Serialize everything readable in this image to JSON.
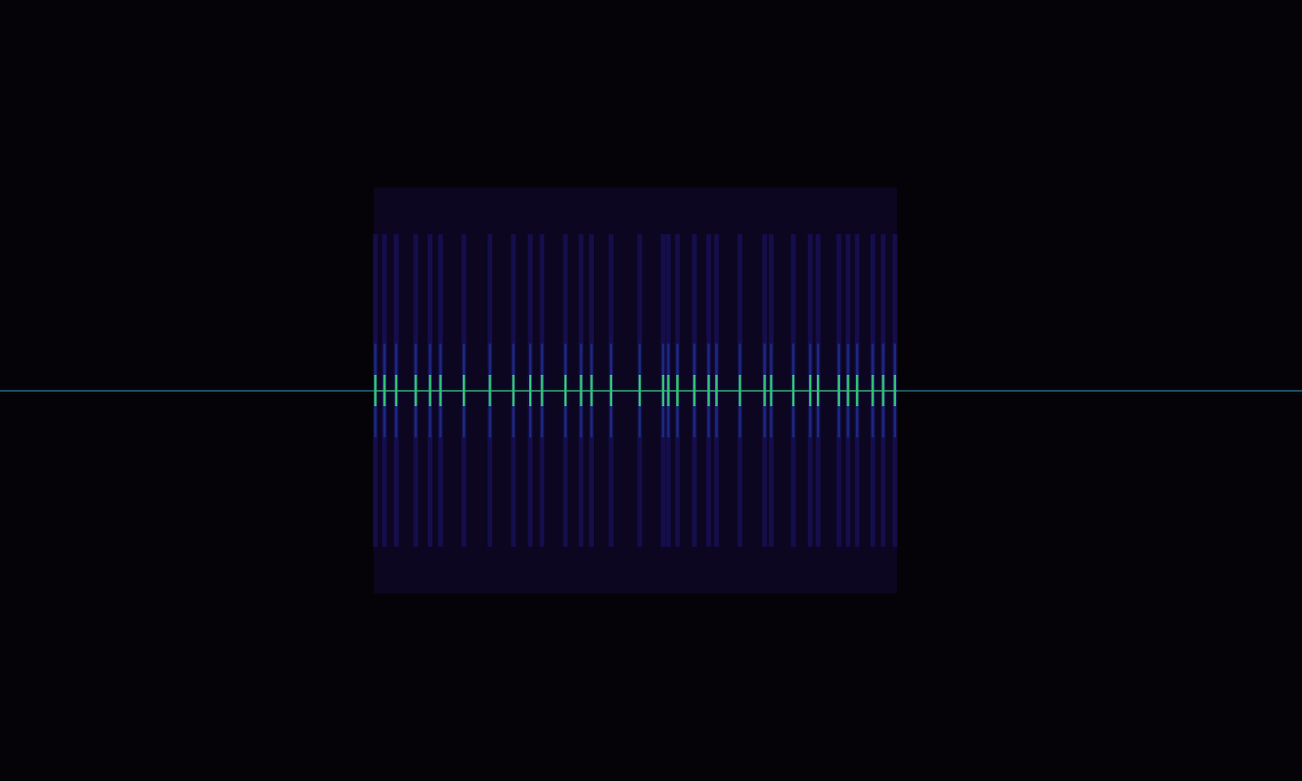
{
  "chart_data": {
    "type": "spectrogram",
    "xlim": [
      0,
      100
    ],
    "ylim": [
      -50,
      50
    ],
    "tick_labels": false,
    "grid": false,
    "carrier": 0,
    "burst": [
      28.7,
      68.9
    ],
    "pulse_band": [
      -20,
      20
    ],
    "pulses": [
      28.8,
      29.5,
      30.4,
      31.9,
      33.0,
      33.8,
      35.6,
      37.6,
      39.4,
      40.7,
      41.6,
      43.4,
      44.6,
      45.4,
      46.9,
      49.1,
      50.9,
      51.3,
      52.0,
      53.3,
      54.4,
      55.0,
      56.8,
      58.7,
      59.2,
      60.9,
      62.2,
      62.8,
      64.4,
      65.1,
      65.8,
      67.0,
      67.8,
      68.7
    ]
  }
}
